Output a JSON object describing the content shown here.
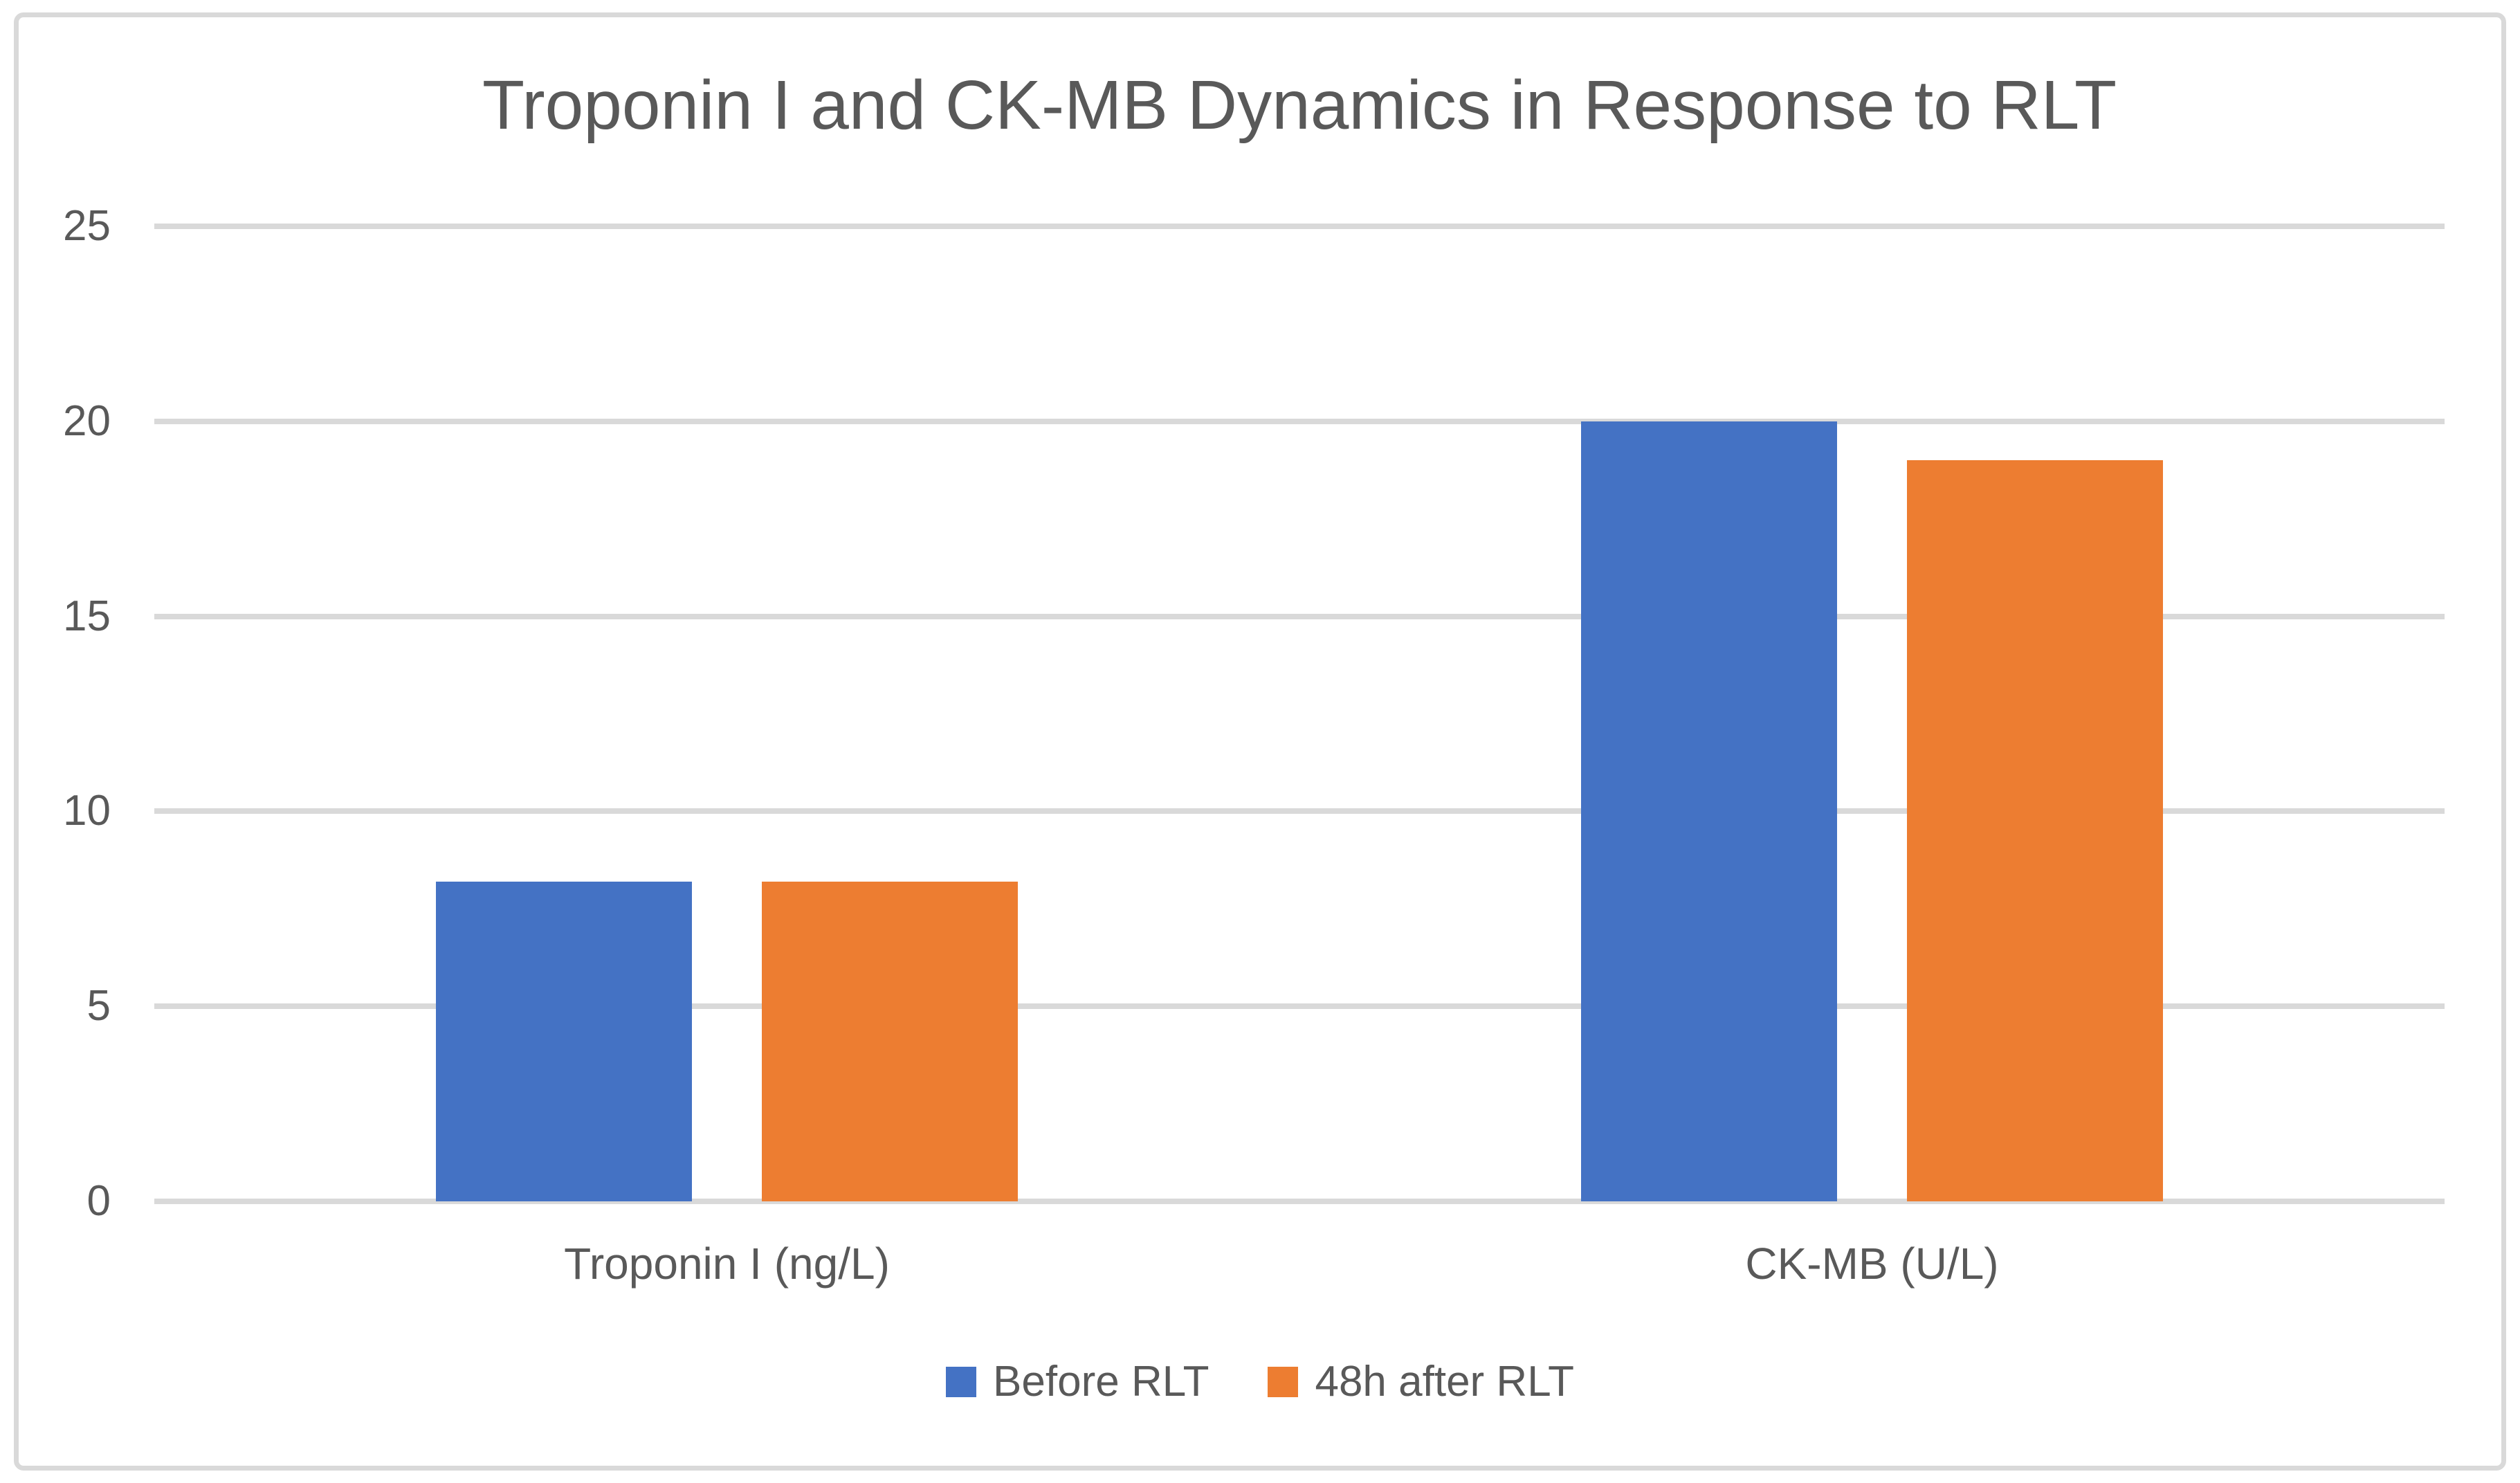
{
  "chart_data": {
    "type": "bar",
    "title": "Troponin I and CK-MB Dynamics in Response to RLT",
    "categories": [
      "Troponin I (ng/L)",
      "CK-MB (U/L)"
    ],
    "series": [
      {
        "name": "Before RLT",
        "color": "#4472C4",
        "values": [
          8.2,
          20
        ]
      },
      {
        "name": "48h after RLT",
        "color": "#ED7D31",
        "values": [
          8.2,
          19
        ]
      }
    ],
    "xlabel": "",
    "ylabel": "",
    "ylim": [
      0,
      25
    ],
    "yticks": [
      0,
      5,
      10,
      15,
      20,
      25
    ],
    "grid": true,
    "legend_position": "bottom"
  },
  "colors": {
    "text": "#595959",
    "gridline": "#D9D9D9",
    "frame_border": "#D9D9D9",
    "background": "#FFFFFF",
    "series_blue": "#4472C4",
    "series_orange": "#ED7D31"
  }
}
